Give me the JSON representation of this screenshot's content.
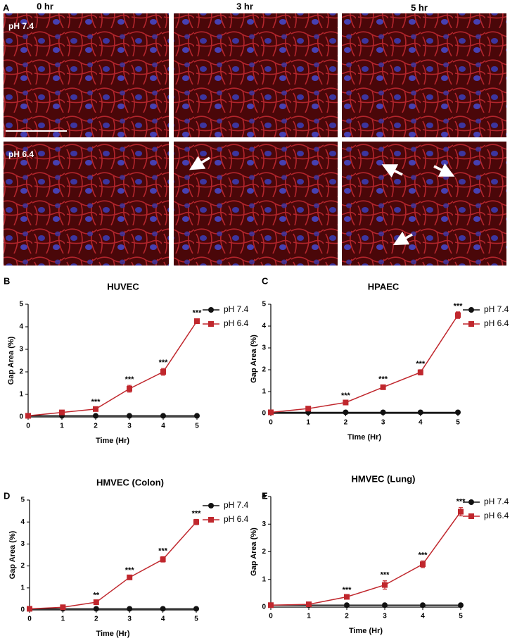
{
  "panel_a": {
    "label": "A",
    "columns": [
      "0 hr",
      "3 hr",
      "5 hr"
    ],
    "rows": [
      "pH 7.4",
      "pH 6.4"
    ]
  },
  "chart_data": [
    {
      "type": "line",
      "panel_label": "B",
      "title": "HUVEC",
      "x_label": "Time (Hr)",
      "y_label": "Gap Area (%)",
      "x": [
        0,
        1,
        2,
        3,
        4,
        5
      ],
      "xlim": [
        0,
        5
      ],
      "xticks": [
        0,
        1,
        2,
        3,
        4,
        5
      ],
      "ylim": [
        0,
        5
      ],
      "yticks": [
        0,
        1,
        2,
        3,
        4,
        5
      ],
      "series": [
        {
          "name": "pH 7.4",
          "color": "#111111",
          "marker": "circle",
          "values": [
            0.05,
            0.05,
            0.05,
            0.05,
            0.05,
            0.05
          ],
          "errors": [
            0.01,
            0.01,
            0.01,
            0.01,
            0.01,
            0.01
          ]
        },
        {
          "name": "pH 6.4",
          "color": "#c0272d",
          "marker": "square",
          "values": [
            0.05,
            0.2,
            0.35,
            1.25,
            2.0,
            4.25
          ],
          "errors": [
            0.02,
            0.05,
            0.05,
            0.15,
            0.15,
            0.1
          ]
        }
      ],
      "annotations": [
        {
          "x": 2,
          "text": "***"
        },
        {
          "x": 3,
          "text": "***"
        },
        {
          "x": 4,
          "text": "***"
        },
        {
          "x": 5,
          "text": "***"
        }
      ]
    },
    {
      "type": "line",
      "panel_label": "C",
      "title": "HPAEC",
      "x_label": "Time (Hr)",
      "y_label": "Gap Area (%)",
      "x": [
        0,
        1,
        2,
        3,
        4,
        5
      ],
      "xlim": [
        0,
        5
      ],
      "xticks": [
        0,
        1,
        2,
        3,
        4,
        5
      ],
      "ylim": [
        0,
        5
      ],
      "yticks": [
        0,
        1,
        2,
        3,
        4,
        5
      ],
      "series": [
        {
          "name": "pH 7.4",
          "color": "#111111",
          "marker": "circle",
          "values": [
            0.05,
            0.05,
            0.05,
            0.05,
            0.05,
            0.05
          ],
          "errors": [
            0.01,
            0.01,
            0.01,
            0.01,
            0.01,
            0.01
          ]
        },
        {
          "name": "pH 6.4",
          "color": "#c0272d",
          "marker": "square",
          "values": [
            0.05,
            0.22,
            0.5,
            1.2,
            1.88,
            4.5
          ],
          "errors": [
            0.02,
            0.04,
            0.05,
            0.1,
            0.12,
            0.15
          ]
        }
      ],
      "annotations": [
        {
          "x": 2,
          "text": "***"
        },
        {
          "x": 3,
          "text": "***"
        },
        {
          "x": 4,
          "text": "***"
        },
        {
          "x": 5,
          "text": "***"
        }
      ]
    },
    {
      "type": "line",
      "panel_label": "D",
      "title": "HMVEC (Colon)",
      "x_label": "Time (Hr)",
      "y_label": "Gap Area (%)",
      "x": [
        0,
        1,
        2,
        3,
        4,
        5
      ],
      "xlim": [
        0,
        5
      ],
      "xticks": [
        0,
        1,
        2,
        3,
        4,
        5
      ],
      "ylim": [
        0,
        5
      ],
      "yticks": [
        0,
        1,
        2,
        3,
        4,
        5
      ],
      "series": [
        {
          "name": "pH 7.4",
          "color": "#111111",
          "marker": "circle",
          "values": [
            0.05,
            0.05,
            0.05,
            0.05,
            0.05,
            0.05
          ],
          "errors": [
            0.01,
            0.01,
            0.01,
            0.01,
            0.01,
            0.01
          ]
        },
        {
          "name": "pH 6.4",
          "color": "#c0272d",
          "marker": "square",
          "values": [
            0.05,
            0.12,
            0.35,
            1.48,
            2.3,
            4.0
          ],
          "errors": [
            0.02,
            0.03,
            0.05,
            0.05,
            0.12,
            0.12
          ]
        }
      ],
      "annotations": [
        {
          "x": 2,
          "text": "**"
        },
        {
          "x": 3,
          "text": "***"
        },
        {
          "x": 4,
          "text": "***"
        },
        {
          "x": 5,
          "text": "***"
        }
      ]
    },
    {
      "type": "line",
      "panel_label": "E",
      "title": "HMVEC (Lung)",
      "x_label": "Time (Hr)",
      "y_label": "Gap Area (%)",
      "x": [
        0,
        1,
        2,
        3,
        4,
        5
      ],
      "xlim": [
        0,
        5
      ],
      "xticks": [
        0,
        1,
        2,
        3,
        4,
        5
      ],
      "ylim": [
        0,
        4
      ],
      "yticks": [
        0,
        1,
        2,
        3,
        4
      ],
      "series": [
        {
          "name": "pH 7.4",
          "color": "#111111",
          "marker": "circle",
          "values": [
            0.07,
            0.07,
            0.07,
            0.07,
            0.07,
            0.07
          ],
          "errors": [
            0.01,
            0.01,
            0.01,
            0.01,
            0.01,
            0.01
          ]
        },
        {
          "name": "pH 6.4",
          "color": "#c0272d",
          "marker": "square",
          "values": [
            0.07,
            0.1,
            0.37,
            0.8,
            1.55,
            3.45
          ],
          "errors": [
            0.02,
            0.03,
            0.04,
            0.15,
            0.12,
            0.15
          ]
        }
      ],
      "annotations": [
        {
          "x": 2,
          "text": "***"
        },
        {
          "x": 3,
          "text": "***"
        },
        {
          "x": 4,
          "text": "***"
        },
        {
          "x": 5,
          "text": "***"
        }
      ]
    }
  ]
}
